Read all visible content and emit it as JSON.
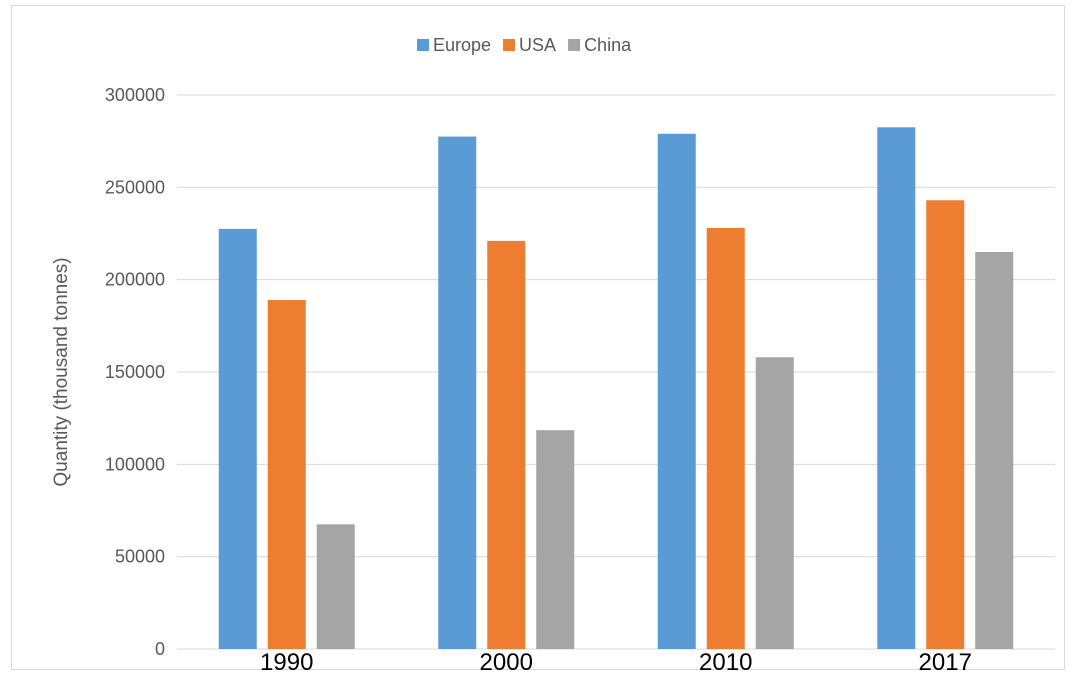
{
  "chart_data": {
    "type": "bar",
    "title": "",
    "xlabel": "",
    "ylabel": "Quantity (thousand tonnes)",
    "categories": [
      "1990",
      "2000",
      "2010",
      "2017"
    ],
    "series": [
      {
        "name": "Europe",
        "color": "#5b9bd5",
        "values": [
          227500,
          277500,
          279000,
          282500
        ]
      },
      {
        "name": "USA",
        "color": "#ed7d31",
        "values": [
          189000,
          221000,
          228000,
          243000
        ]
      },
      {
        "name": "China",
        "color": "#a5a5a5",
        "values": [
          67500,
          118500,
          158000,
          215000
        ]
      }
    ],
    "ylim": [
      0,
      300000
    ],
    "yticks": [
      "0",
      "50000",
      "100000",
      "150000",
      "200000",
      "250000",
      "300000"
    ],
    "grid": true,
    "legend_position": "top-center"
  }
}
